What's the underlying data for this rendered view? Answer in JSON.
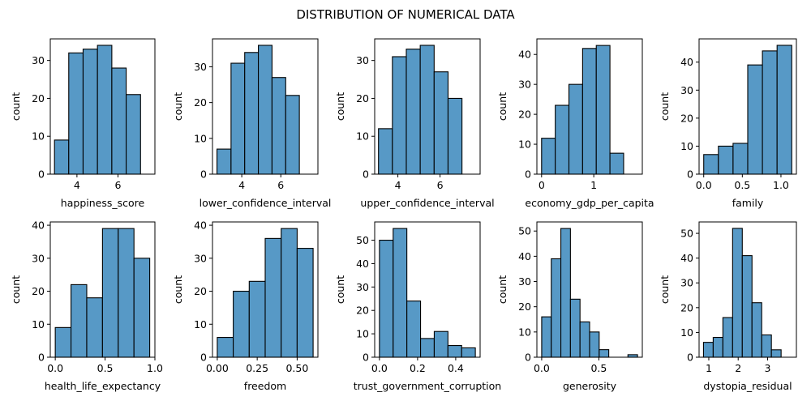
{
  "title": "DISTRIBUTION OF NUMERICAL DATA",
  "chart_data": [
    {
      "type": "bar",
      "xlabel": "happiness_score",
      "ylabel": "count",
      "bin_edges": [
        2.905,
        3.6,
        4.3,
        5.0,
        5.7,
        6.4,
        7.1,
        7.6
      ],
      "values": [
        9,
        32,
        33,
        34,
        28,
        21,
        0
      ],
      "xlim": [
        2.7,
        7.8
      ],
      "ylim": [
        0,
        35.7
      ],
      "xticks": [
        4,
        6
      ],
      "yticks": [
        0,
        10,
        20,
        30
      ]
    },
    {
      "type": "bar",
      "xlabel": "lower_confidence_interval",
      "ylabel": "count",
      "bin_edges": [
        2.73,
        3.45,
        4.15,
        4.85,
        5.55,
        6.25,
        6.95,
        7.66
      ],
      "values": [
        7,
        31,
        34,
        36,
        27,
        22,
        0
      ],
      "xlim": [
        2.5,
        7.9
      ],
      "ylim": [
        0,
        37.8
      ],
      "xticks": [
        4,
        6
      ],
      "yticks": [
        0,
        10,
        20,
        30
      ]
    },
    {
      "type": "bar",
      "xlabel": "upper_confidence_interval",
      "ylabel": "count",
      "bin_edges": [
        3.08,
        3.74,
        4.4,
        5.06,
        5.72,
        6.38,
        7.04,
        7.7
      ],
      "values": [
        12,
        31,
        33,
        34,
        27,
        20,
        0
      ],
      "xlim": [
        2.9,
        7.9
      ],
      "ylim": [
        0,
        35.7
      ],
      "xticks": [
        4,
        6
      ],
      "yticks": [
        0,
        10,
        20,
        30
      ]
    },
    {
      "type": "bar",
      "xlabel": "economy_gdp_per_capita",
      "ylabel": "count",
      "bin_edges": [
        0,
        0.262,
        0.524,
        0.786,
        1.048,
        1.31,
        1.572,
        1.834
      ],
      "values": [
        12,
        23,
        30,
        42,
        43,
        7,
        0
      ],
      "xlim": [
        -0.09,
        1.93
      ],
      "ylim": [
        0,
        45.2
      ],
      "xticks": [
        0,
        1
      ],
      "yticks": [
        0,
        10,
        20,
        30,
        40
      ]
    },
    {
      "type": "bar",
      "xlabel": "family",
      "ylabel": "count",
      "bin_edges": [
        0,
        0.19,
        0.38,
        0.57,
        0.76,
        0.95,
        1.14
      ],
      "values": [
        7,
        10,
        11,
        39,
        44,
        46
      ],
      "xlim": [
        -0.06,
        1.2
      ],
      "ylim": [
        0,
        48.3
      ],
      "xticks": [
        0.0,
        0.5,
        1.0
      ],
      "yticks": [
        0,
        10,
        20,
        30,
        40
      ]
    },
    {
      "type": "bar",
      "xlabel": "health_life_expectancy",
      "ylabel": "count",
      "bin_edges": [
        0,
        0.158,
        0.316,
        0.474,
        0.632,
        0.79,
        0.948
      ],
      "values": [
        9,
        22,
        18,
        39,
        39,
        30
      ],
      "xlim": [
        -0.05,
        1.0
      ],
      "ylim": [
        0,
        41
      ],
      "xticks": [
        0.0,
        0.5,
        1.0
      ],
      "yticks": [
        0,
        10,
        20,
        30,
        40
      ]
    },
    {
      "type": "bar",
      "xlabel": "freedom",
      "ylabel": "count",
      "bin_edges": [
        0,
        0.1,
        0.2,
        0.3,
        0.4,
        0.5,
        0.6
      ],
      "values": [
        6,
        20,
        23,
        36,
        39,
        33
      ],
      "xlim": [
        -0.03,
        0.63
      ],
      "ylim": [
        0,
        41
      ],
      "xticks": [
        0.0,
        0.25,
        0.5
      ],
      "yticks": [
        0,
        10,
        20,
        30,
        40
      ]
    },
    {
      "type": "bar",
      "xlabel": "trust_government_corruption",
      "ylabel": "count",
      "bin_edges": [
        0,
        0.0719,
        0.1437,
        0.2156,
        0.2874,
        0.3593,
        0.4311,
        0.503
      ],
      "values": [
        50,
        55,
        24,
        8,
        11,
        5,
        4
      ],
      "xlim": [
        -0.025,
        0.528
      ],
      "ylim": [
        0,
        57.8
      ],
      "xticks": [
        0.0,
        0.2,
        0.4
      ],
      "yticks": [
        0,
        10,
        20,
        30,
        40,
        50
      ]
    },
    {
      "type": "bar",
      "xlabel": "generosity",
      "ylabel": "count",
      "bin_edges": [
        0,
        0.0838,
        0.1676,
        0.2514,
        0.3352,
        0.419,
        0.5028,
        0.5866,
        0.6704,
        0.7542,
        0.838
      ],
      "values": [
        16,
        39,
        51,
        23,
        14,
        10,
        3,
        0,
        0,
        1
      ],
      "xlim": [
        -0.042,
        0.88
      ],
      "ylim": [
        0,
        53.6
      ],
      "xticks": [
        0.0,
        0.5
      ],
      "yticks": [
        0,
        10,
        20,
        30,
        40,
        50
      ]
    },
    {
      "type": "bar",
      "xlabel": "dystopia_residual",
      "ylabel": "count",
      "bin_edges": [
        0.82,
        1.15,
        1.48,
        1.81,
        2.14,
        2.47,
        2.8,
        3.13,
        3.46,
        3.79
      ],
      "values": [
        6,
        8,
        16,
        52,
        41,
        22,
        9,
        3,
        0
      ],
      "xlim": [
        0.67,
        3.98
      ],
      "ylim": [
        0,
        54.6
      ],
      "xticks": [
        1,
        2,
        3
      ],
      "yticks": [
        0,
        10,
        20,
        30,
        40,
        50
      ]
    }
  ]
}
